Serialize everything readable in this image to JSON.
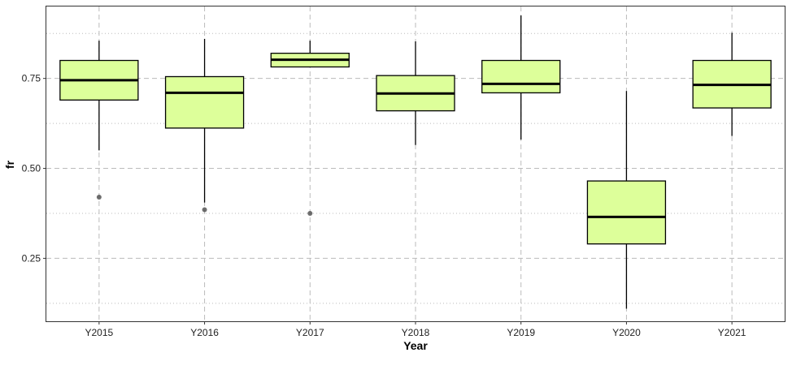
{
  "chart_data": {
    "type": "boxplot",
    "title": "",
    "xlabel": "Year",
    "ylabel": "fr",
    "ylim": [
      0.075,
      0.95
    ],
    "yticks": [
      0.25,
      0.5,
      0.75
    ],
    "ytick_labels": [
      "0.25",
      "0.50",
      "0.75"
    ],
    "minor_yticks": [
      0.125,
      0.375,
      0.625,
      0.875
    ],
    "grid": true,
    "categories": [
      "Y2015",
      "Y2016",
      "Y2017",
      "Y2018",
      "Y2019",
      "Y2020",
      "Y2021"
    ],
    "boxes": [
      {
        "category": "Y2015",
        "whisker_low": 0.55,
        "q1": 0.69,
        "median": 0.745,
        "q3": 0.8,
        "whisker_high": 0.855,
        "outliers": [
          0.42
        ]
      },
      {
        "category": "Y2016",
        "whisker_low": 0.405,
        "q1": 0.612,
        "median": 0.71,
        "q3": 0.755,
        "whisker_high": 0.86,
        "outliers": [
          0.385
        ]
      },
      {
        "category": "Y2017",
        "whisker_low": 0.782,
        "q1": 0.782,
        "median": 0.802,
        "q3": 0.82,
        "whisker_high": 0.855,
        "outliers": [
          0.375
        ]
      },
      {
        "category": "Y2018",
        "whisker_low": 0.565,
        "q1": 0.66,
        "median": 0.708,
        "q3": 0.758,
        "whisker_high": 0.853,
        "outliers": []
      },
      {
        "category": "Y2019",
        "whisker_low": 0.58,
        "q1": 0.71,
        "median": 0.735,
        "q3": 0.8,
        "whisker_high": 0.925,
        "outliers": []
      },
      {
        "category": "Y2020",
        "whisker_low": 0.11,
        "q1": 0.29,
        "median": 0.365,
        "q3": 0.465,
        "whisker_high": 0.715,
        "outliers": []
      },
      {
        "category": "Y2021",
        "whisker_low": 0.59,
        "q1": 0.668,
        "median": 0.732,
        "q3": 0.8,
        "whisker_high": 0.877,
        "outliers": []
      }
    ],
    "colors": {
      "box_fill": "#ddff9a",
      "box_stroke": "#000000",
      "outlier": "#555555",
      "grid": "#bbbbbb",
      "panel_border": "#333333"
    }
  }
}
